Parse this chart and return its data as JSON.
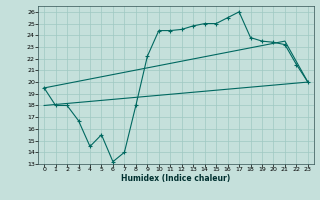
{
  "xlabel": "Humidex (Indice chaleur)",
  "bg_color": "#c5e0db",
  "grid_color": "#9fc8c2",
  "line_color": "#006860",
  "xlim": [
    -0.5,
    23.5
  ],
  "ylim": [
    13,
    26.5
  ],
  "xticks": [
    0,
    1,
    2,
    3,
    4,
    5,
    6,
    7,
    8,
    9,
    10,
    11,
    12,
    13,
    14,
    15,
    16,
    17,
    18,
    19,
    20,
    21,
    22,
    23
  ],
  "yticks": [
    13,
    14,
    15,
    16,
    17,
    18,
    19,
    20,
    21,
    22,
    23,
    24,
    25,
    26
  ],
  "line1_x": [
    0,
    1,
    2,
    3,
    4,
    5,
    6,
    7,
    8,
    9,
    10,
    11,
    12,
    13,
    14,
    15,
    16,
    17,
    18,
    19,
    20,
    21,
    22,
    23
  ],
  "line1_y": [
    19.5,
    18.0,
    18.0,
    16.7,
    14.5,
    15.5,
    13.2,
    14.0,
    18.0,
    22.2,
    24.4,
    24.4,
    24.5,
    24.8,
    25.0,
    25.0,
    25.5,
    26.0,
    23.8,
    23.5,
    23.4,
    23.2,
    21.5,
    20.0
  ],
  "line2_x": [
    0,
    23
  ],
  "line2_y": [
    18.0,
    20.0
  ],
  "line3_x": [
    0,
    21,
    23
  ],
  "line3_y": [
    19.5,
    23.5,
    20.0
  ]
}
